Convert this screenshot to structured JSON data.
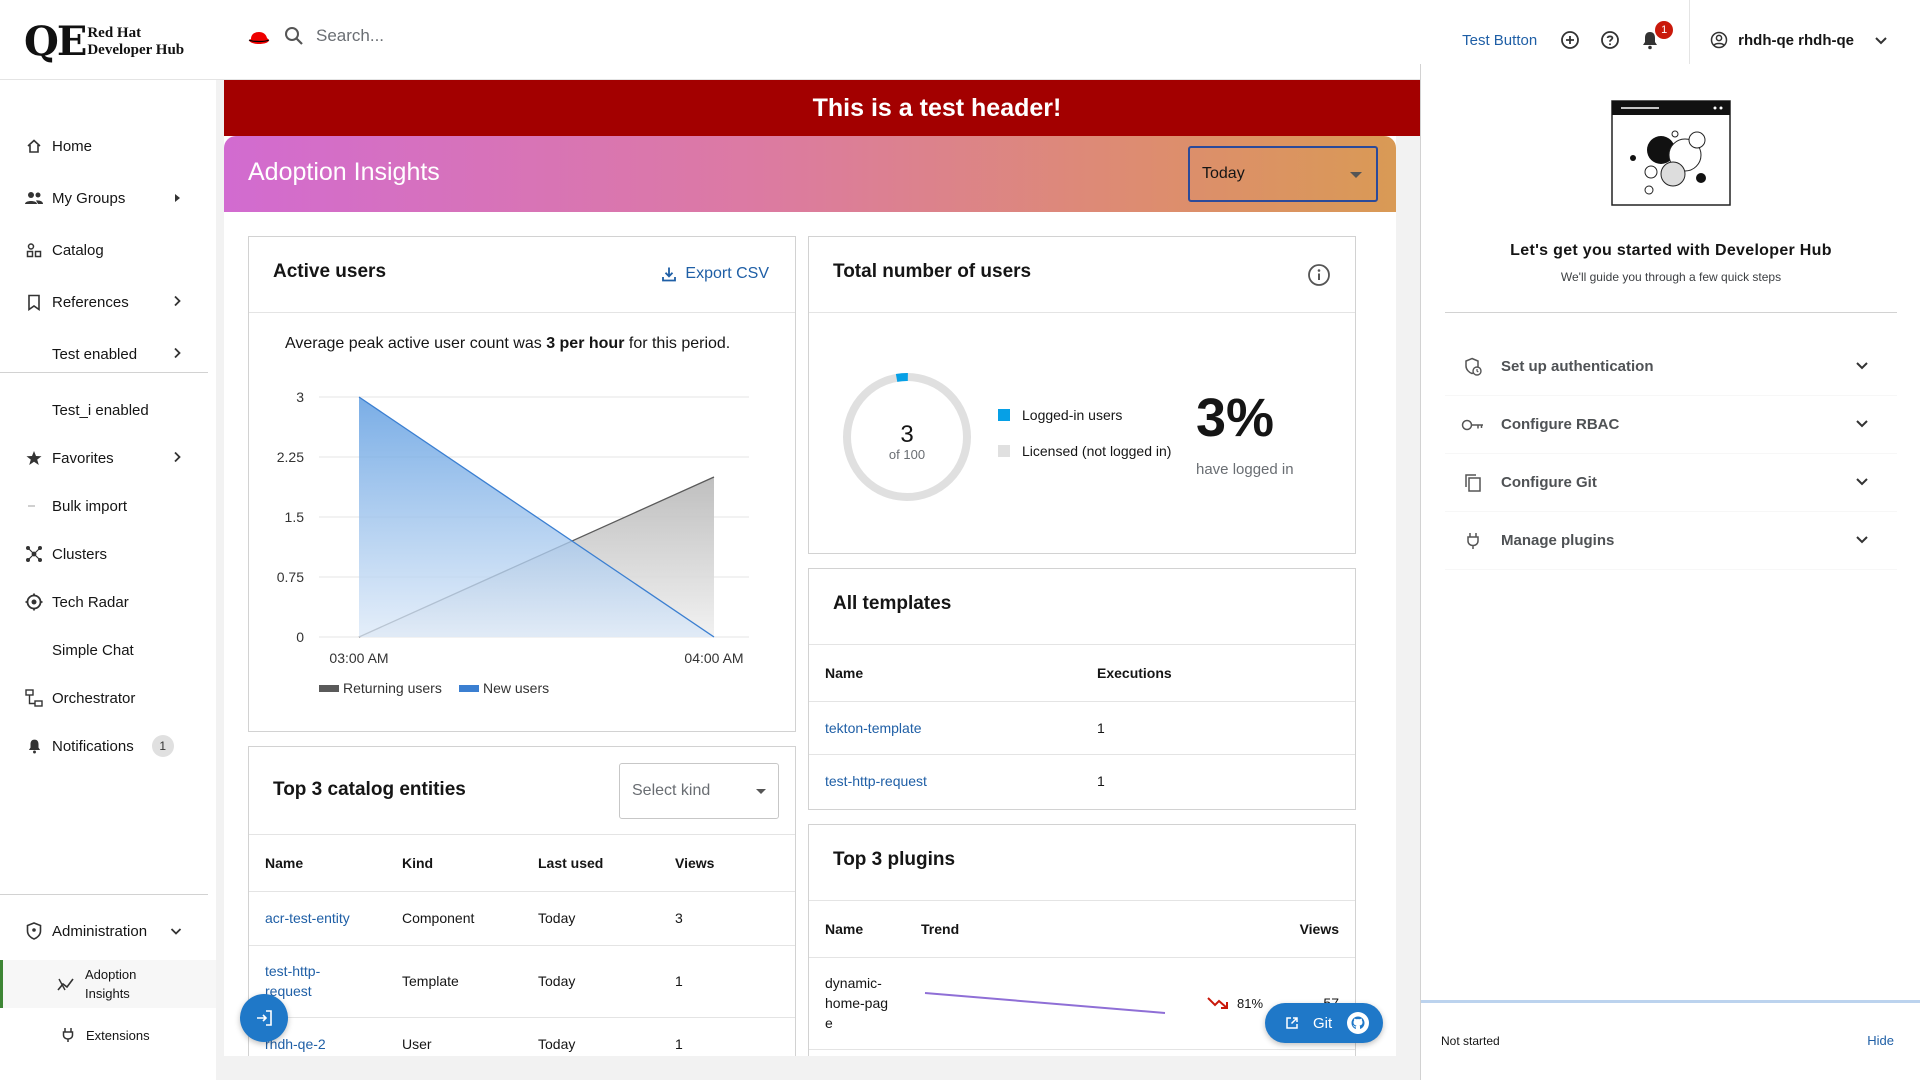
{
  "app": {
    "logo_mark": "QE",
    "logo_line1": "Red Hat",
    "logo_line2": "Developer Hub"
  },
  "topbar": {
    "search_placeholder": "Search...",
    "test_button": "Test Button",
    "notifications_count": "1",
    "user_name": "rhdh-qe rhdh-qe"
  },
  "sidebar": {
    "items": [
      {
        "label": "Home"
      },
      {
        "label": "My Groups"
      },
      {
        "label": "Catalog"
      },
      {
        "label": "References"
      },
      {
        "label": "Test enabled"
      },
      {
        "label": "Test_i enabled"
      },
      {
        "label": "Favorites"
      },
      {
        "label": "Bulk import"
      },
      {
        "label": "Clusters"
      },
      {
        "label": "Tech Radar"
      },
      {
        "label": "Simple Chat"
      },
      {
        "label": "Orchestrator"
      },
      {
        "label": "Notifications",
        "badge": "1"
      }
    ],
    "admin": {
      "label": "Administration",
      "sub": [
        "Adoption Insights",
        "Extensions"
      ]
    }
  },
  "banner": {
    "text": "This is a test header!"
  },
  "hero": {
    "title": "Adoption Insights",
    "period": "Today"
  },
  "active_users": {
    "title": "Active users",
    "export": "Export CSV",
    "avg_prefix": "Average peak active user count was ",
    "avg_value": "3 per hour",
    "avg_suffix": " for this period.",
    "y_ticks": [
      "3",
      "2.25",
      "1.5",
      "0.75",
      "0"
    ],
    "x_ticks": [
      "03:00 AM",
      "04:00 AM"
    ],
    "legend_returning": "Returning users",
    "legend_new": "New users"
  },
  "chart_data": {
    "type": "area",
    "x": [
      "03:00 AM",
      "04:00 AM"
    ],
    "series": [
      {
        "name": "Returning users",
        "values": [
          0,
          2
        ],
        "color": "#8a8d90"
      },
      {
        "name": "New users",
        "values": [
          3,
          0
        ],
        "color": "#4a90d9"
      }
    ],
    "ylim": [
      0,
      3
    ],
    "grid": true,
    "legend": "bottom"
  },
  "total_users": {
    "title": "Total number of users",
    "logged_in": 3,
    "licensed": 100,
    "donut_value": "3",
    "donut_of": "of 100",
    "legend_logged": "Logged-in users",
    "legend_licensed": "Licensed (not logged in)",
    "percent": "3%",
    "percent_caption": "have logged in"
  },
  "templates": {
    "title": "All templates",
    "columns": [
      "Name",
      "Executions"
    ],
    "rows": [
      [
        "tekton-template",
        "1"
      ],
      [
        "test-http-request",
        "1"
      ]
    ]
  },
  "catalog": {
    "title": "Top 3 catalog entities",
    "select_placeholder": "Select kind",
    "columns": [
      "Name",
      "Kind",
      "Last used",
      "Views"
    ],
    "rows": [
      [
        "acr-test-entity",
        "Component",
        "Today",
        "3"
      ],
      [
        "test-http-request",
        "Template",
        "Today",
        "1"
      ],
      [
        "rhdh-qe-2",
        "User",
        "Today",
        "1"
      ]
    ]
  },
  "plugins": {
    "title": "Top 3 plugins",
    "columns": [
      "Name",
      "Trend",
      "Views"
    ],
    "rows": [
      {
        "name": "dynamic-home-page",
        "trend": "81%",
        "views": "57"
      }
    ]
  },
  "quickstart": {
    "title": "Let's get you started with Developer Hub",
    "subtitle": "We'll guide you through a few quick steps",
    "items": [
      "Set up authentication",
      "Configure RBAC",
      "Configure Git",
      "Manage plugins"
    ],
    "status": "Not started",
    "hide": "Hide"
  },
  "git_button": "Git",
  "colors": {
    "banner": "#a30000",
    "link": "#1f5fa6",
    "accent_blue": "#1f78c8",
    "logged_in": "#06a0e6",
    "licensed": "#e0e0e0",
    "trend_down": "#c9190b"
  }
}
